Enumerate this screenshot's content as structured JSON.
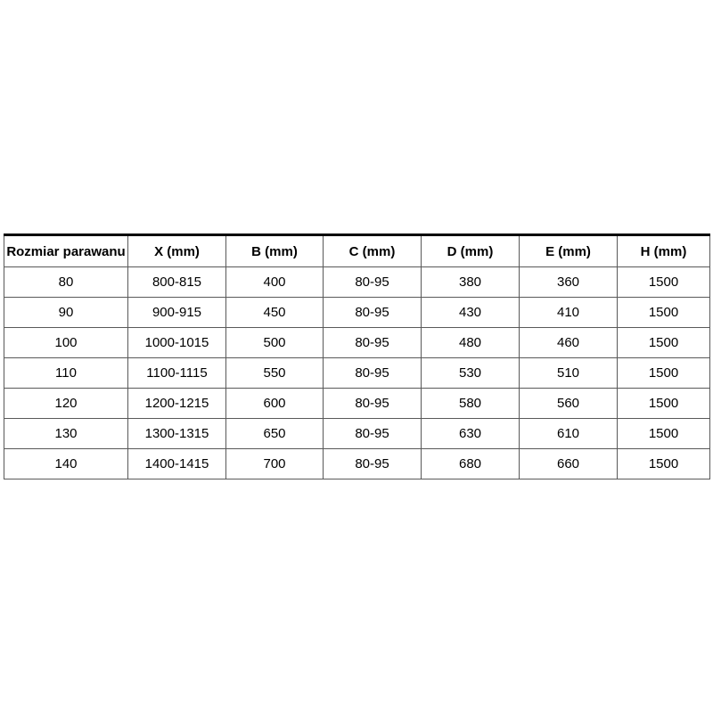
{
  "table": {
    "columns": [
      "Rozmiar parawanu",
      "X (mm)",
      "B (mm)",
      "C (mm)",
      "D (mm)",
      "E (mm)",
      "H (mm)"
    ],
    "rows": [
      [
        "80",
        "800-815",
        "400",
        "80-95",
        "380",
        "360",
        "1500"
      ],
      [
        "90",
        "900-915",
        "450",
        "80-95",
        "430",
        "410",
        "1500"
      ],
      [
        "100",
        "1000-1015",
        "500",
        "80-95",
        "480",
        "460",
        "1500"
      ],
      [
        "110",
        "1100-1115",
        "550",
        "80-95",
        "530",
        "510",
        "1500"
      ],
      [
        "120",
        "1200-1215",
        "600",
        "80-95",
        "580",
        "560",
        "1500"
      ],
      [
        "130",
        "1300-1315",
        "650",
        "80-95",
        "630",
        "610",
        "1500"
      ],
      [
        "140",
        "1400-1415",
        "700",
        "80-95",
        "680",
        "660",
        "1500"
      ]
    ],
    "colors": {
      "grid_border": "#595959",
      "top_border": "#000000",
      "text": "#000000",
      "background": "#ffffff"
    }
  }
}
